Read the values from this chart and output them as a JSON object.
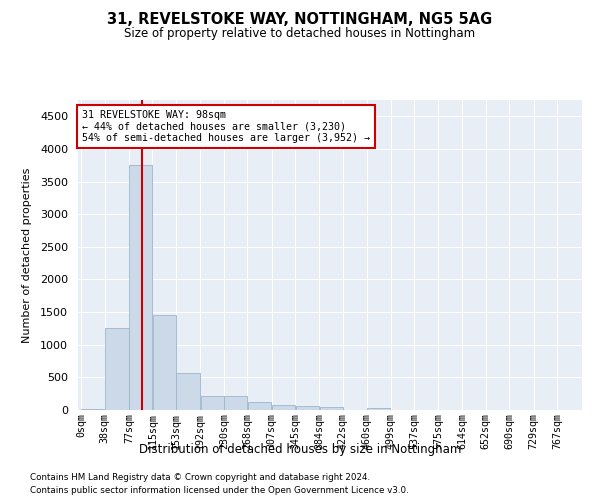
{
  "title": "31, REVELSTOKE WAY, NOTTINGHAM, NG5 5AG",
  "subtitle": "Size of property relative to detached houses in Nottingham",
  "xlabel": "Distribution of detached houses by size in Nottingham",
  "ylabel": "Number of detached properties",
  "bar_color": "#ccd9e8",
  "bar_edge_color": "#9db5cc",
  "background_color": "#ffffff",
  "plot_bg_color": "#e8eef5",
  "grid_color": "#ffffff",
  "annotation_box_color": "#cc0000",
  "vline_color": "#cc0000",
  "property_sqm": 98,
  "annotation_line1": "31 REVELSTOKE WAY: 98sqm",
  "annotation_line2": "← 44% of detached houses are smaller (3,230)",
  "annotation_line3": "54% of semi-detached houses are larger (3,952) →",
  "bin_edges": [
    0,
    38,
    77,
    115,
    153,
    192,
    230,
    268,
    307,
    345,
    384,
    422,
    460,
    499,
    537,
    575,
    614,
    652,
    690,
    729,
    767
  ],
  "values": [
    20,
    1250,
    3750,
    1450,
    570,
    220,
    210,
    115,
    80,
    60,
    50,
    0,
    35,
    0,
    0,
    0,
    0,
    0,
    0,
    0,
    0
  ],
  "ylim": [
    0,
    4750
  ],
  "yticks": [
    0,
    500,
    1000,
    1500,
    2000,
    2500,
    3000,
    3500,
    4000,
    4500
  ],
  "categories": [
    "0sqm",
    "38sqm",
    "77sqm",
    "115sqm",
    "153sqm",
    "192sqm",
    "230sqm",
    "268sqm",
    "307sqm",
    "345sqm",
    "384sqm",
    "422sqm",
    "460sqm",
    "499sqm",
    "537sqm",
    "575sqm",
    "614sqm",
    "652sqm",
    "690sqm",
    "729sqm",
    "767sqm"
  ],
  "footer_line1": "Contains HM Land Registry data © Crown copyright and database right 2024.",
  "footer_line2": "Contains public sector information licensed under the Open Government Licence v3.0."
}
